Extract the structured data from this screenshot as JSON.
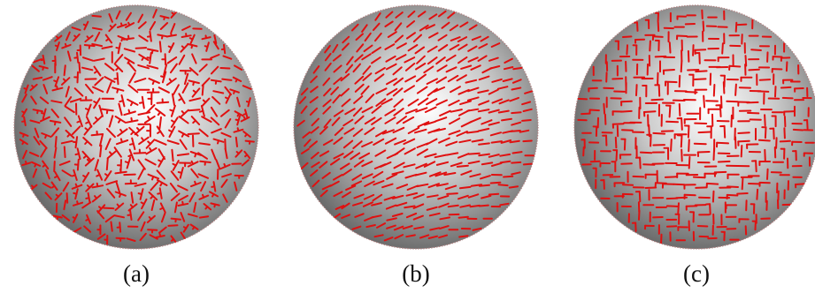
{
  "panels": [
    {
      "id": "a",
      "caption": "(a)",
      "pattern": "random-crosses"
    },
    {
      "id": "b",
      "caption": "(b)",
      "pattern": "aligned-flow"
    },
    {
      "id": "c",
      "caption": "(c)",
      "pattern": "axis-aligned-crosses"
    }
  ],
  "colors": {
    "sphere_light": "#ffffff",
    "sphere_mid": "#c8c8c8",
    "sphere_dark": "#5a5a5a",
    "stroke": "#e01010",
    "caption": "#111111",
    "background": "#ffffff"
  }
}
